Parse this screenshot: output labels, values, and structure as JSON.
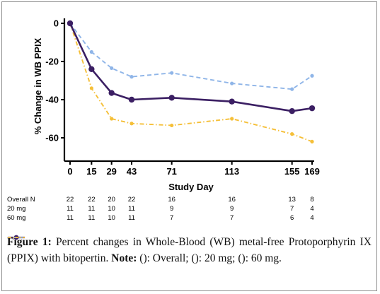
{
  "chart_data": {
    "type": "line",
    "xlabel": "Study Day",
    "ylabel": "% Change in WB PPIX",
    "x": [
      0,
      15,
      29,
      43,
      71,
      113,
      155,
      169
    ],
    "x_tick_labels": [
      "0",
      "15",
      "29",
      "43",
      "71",
      "113",
      "155",
      "169"
    ],
    "ylim": [
      -70,
      0
    ],
    "y_ticks": [
      0,
      -20,
      -40,
      -60
    ],
    "y_tick_labels": [
      "0",
      "-20",
      "-40",
      "-60"
    ],
    "grid": false,
    "series": [
      {
        "name": "Overall",
        "color": "#3b1f63",
        "style": "solid-with-markers",
        "values": [
          0,
          -24,
          -36.5,
          -40,
          -39,
          -41,
          -46,
          -44.5
        ]
      },
      {
        "name": "20 mg",
        "color": "#8fb5e8",
        "style": "dashed-with-markers",
        "values": [
          0,
          -15,
          -23.5,
          -28,
          -26,
          -31.5,
          -34.5,
          -27.5
        ]
      },
      {
        "name": "60 mg",
        "color": "#f5bf38",
        "style": "dash-dot-with-markers",
        "values": [
          0,
          -34,
          -50,
          -52.5,
          -53.5,
          -50,
          -58,
          -62
        ]
      }
    ]
  },
  "n_table": {
    "rows": [
      {
        "label": "Overall N",
        "values": [
          "22",
          "22",
          "20",
          "22",
          "16",
          "16",
          "13",
          "8"
        ]
      },
      {
        "label": "20 mg",
        "values": [
          "11",
          "11",
          "10",
          "11",
          "9",
          "9",
          "7",
          "4"
        ]
      },
      {
        "label": "60 mg",
        "values": [
          "11",
          "11",
          "10",
          "11",
          "7",
          "7",
          "6",
          "4"
        ]
      }
    ]
  },
  "caption": {
    "figure_label": "Figure 1:",
    "text": "Percent changes in Whole-Blood (WB) metal-free Protoporphyrin IX (PPIX) with bitopertin.",
    "note_label": "Note:",
    "open_paren": "(",
    "overall_label": "): Overall;",
    "mg20_label": "): 20 mg;",
    "mg60_label": "): 60 mg."
  }
}
